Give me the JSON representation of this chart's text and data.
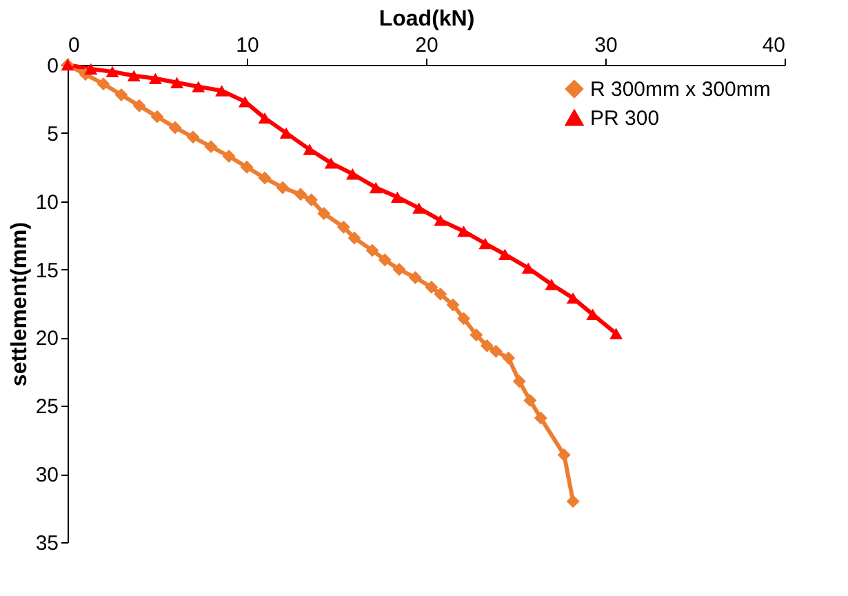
{
  "chart_data": {
    "type": "line",
    "xlabel": "Load(kN)",
    "ylabel": "settlement(mm)",
    "xlim": [
      0,
      40
    ],
    "xticks": [
      0,
      10,
      20,
      30,
      40
    ],
    "ylim": [
      35,
      0
    ],
    "yticks": [
      0,
      5,
      10,
      15,
      20,
      25,
      30,
      35
    ],
    "grid": false,
    "legend": "top right",
    "line_style": "solid",
    "series": [
      {
        "name": "R 300mm x 300mm",
        "color": "#ed7d31",
        "marker": "diamond",
        "x": [
          0,
          1,
          2,
          3,
          4,
          5,
          6,
          7,
          8,
          9,
          10,
          11,
          12,
          13,
          13.6,
          14.3,
          15.4,
          16,
          17,
          17.7,
          18.5,
          19.4,
          20.3,
          20.8,
          21.5,
          22.1,
          22.8,
          23.4,
          23.9,
          24.6,
          25.2,
          25.8,
          26.4,
          27.7,
          28.2
        ],
        "values": [
          0,
          0.7,
          1.4,
          2.2,
          3.0,
          3.8,
          4.6,
          5.3,
          6.0,
          6.7,
          7.5,
          8.3,
          9.0,
          9.5,
          9.9,
          10.9,
          11.9,
          12.7,
          13.6,
          14.3,
          15.0,
          15.6,
          16.3,
          16.8,
          17.6,
          18.6,
          19.8,
          20.6,
          21.0,
          21.5,
          23.2,
          24.6,
          25.9,
          28.6,
          32.0
        ]
      },
      {
        "name": "PR 300",
        "color": "#ff0000",
        "marker": "triangle",
        "x": [
          0,
          1.3,
          2.5,
          3.7,
          4.9,
          6.1,
          7.3,
          8.6,
          9.9,
          11.0,
          12.2,
          13.5,
          14.7,
          15.9,
          17.2,
          18.4,
          19.6,
          20.8,
          22.1,
          23.3,
          24.4,
          25.7,
          27.0,
          28.2,
          29.3,
          30.6
        ],
        "values": [
          0,
          0.3,
          0.5,
          0.8,
          1.0,
          1.3,
          1.6,
          1.9,
          2.7,
          3.9,
          5.0,
          6.2,
          7.2,
          8.0,
          9.0,
          9.7,
          10.5,
          11.4,
          12.2,
          13.1,
          13.9,
          14.9,
          16.1,
          17.1,
          18.3,
          19.7
        ]
      }
    ]
  }
}
